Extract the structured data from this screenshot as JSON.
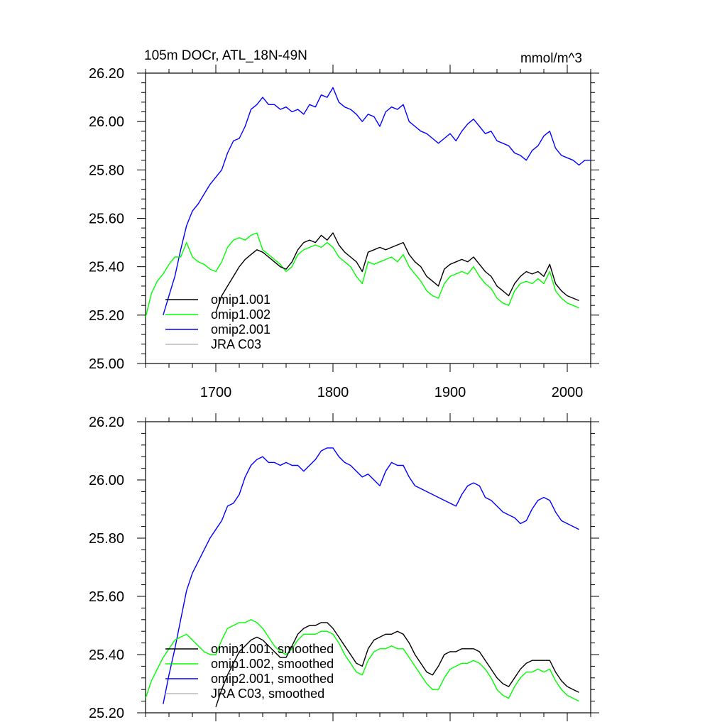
{
  "chart_data": [
    {
      "type": "line",
      "panel": "top",
      "title": "105m DOCr, ATL_18N-49N",
      "units": "mmol/m^3",
      "xlabel": "",
      "ylabel": "",
      "xlim": [
        1640,
        2020
      ],
      "ylim": [
        25.0,
        26.2
      ],
      "xticks": [
        1700,
        1800,
        1900,
        2000
      ],
      "xtick_labels": [
        "1700",
        "1800",
        "1900",
        "2000"
      ],
      "yticks": [
        25.0,
        25.2,
        25.4,
        25.6,
        25.8,
        26.0,
        26.2
      ],
      "ytick_labels": [
        "25.00",
        "25.20",
        "25.40",
        "25.60",
        "25.80",
        "26.00",
        "26.20"
      ],
      "legend_location": "bottom-left",
      "series": [
        {
          "name": "omip1.001",
          "color": "#000000",
          "x": [
            1700,
            1705,
            1710,
            1715,
            1720,
            1725,
            1730,
            1735,
            1740,
            1745,
            1750,
            1755,
            1760,
            1765,
            1770,
            1775,
            1780,
            1785,
            1790,
            1795,
            1800,
            1805,
            1810,
            1815,
            1820,
            1825,
            1830,
            1835,
            1840,
            1845,
            1850,
            1855,
            1860,
            1865,
            1870,
            1875,
            1880,
            1885,
            1890,
            1895,
            1900,
            1905,
            1910,
            1915,
            1920,
            1925,
            1930,
            1935,
            1940,
            1945,
            1950,
            1955,
            1960,
            1965,
            1970,
            1975,
            1980,
            1985,
            1990,
            1995,
            2000,
            2005,
            2010
          ],
          "y": [
            25.21,
            25.28,
            25.32,
            25.36,
            25.4,
            25.43,
            25.45,
            25.47,
            25.46,
            25.44,
            25.42,
            25.4,
            25.39,
            25.42,
            25.47,
            25.5,
            25.51,
            25.5,
            25.53,
            25.51,
            25.54,
            25.49,
            25.46,
            25.44,
            25.42,
            25.38,
            25.46,
            25.47,
            25.48,
            25.47,
            25.48,
            25.49,
            25.5,
            25.45,
            25.42,
            25.4,
            25.36,
            25.34,
            25.32,
            25.39,
            25.41,
            25.42,
            25.43,
            25.42,
            25.44,
            25.41,
            25.38,
            25.36,
            25.32,
            25.3,
            25.28,
            25.33,
            25.36,
            25.38,
            25.37,
            25.38,
            25.36,
            25.41,
            25.33,
            25.3,
            25.28,
            25.27,
            25.26
          ]
        },
        {
          "name": "omip1.002",
          "color": "#00ff00",
          "x": [
            1640,
            1645,
            1650,
            1655,
            1660,
            1665,
            1670,
            1675,
            1680,
            1685,
            1690,
            1695,
            1700,
            1705,
            1710,
            1715,
            1720,
            1725,
            1730,
            1735,
            1740,
            1745,
            1750,
            1755,
            1760,
            1765,
            1770,
            1775,
            1780,
            1785,
            1790,
            1795,
            1800,
            1805,
            1810,
            1815,
            1820,
            1825,
            1830,
            1835,
            1840,
            1845,
            1850,
            1855,
            1860,
            1865,
            1870,
            1875,
            1880,
            1885,
            1890,
            1895,
            1900,
            1905,
            1910,
            1915,
            1920,
            1925,
            1930,
            1935,
            1940,
            1945,
            1950,
            1955,
            1960,
            1965,
            1970,
            1975,
            1980,
            1985,
            1990,
            1995,
            2000,
            2005,
            2010
          ],
          "y": [
            25.19,
            25.29,
            25.34,
            25.37,
            25.41,
            25.44,
            25.44,
            25.5,
            25.44,
            25.42,
            25.41,
            25.39,
            25.38,
            25.42,
            25.48,
            25.51,
            25.52,
            25.51,
            25.53,
            25.54,
            25.47,
            25.45,
            25.43,
            25.41,
            25.38,
            25.4,
            25.45,
            25.47,
            25.48,
            25.49,
            25.48,
            25.5,
            25.48,
            25.44,
            25.42,
            25.4,
            25.36,
            25.33,
            25.42,
            25.41,
            25.42,
            25.43,
            25.44,
            25.42,
            25.45,
            25.4,
            25.37,
            25.34,
            25.3,
            25.28,
            25.27,
            25.33,
            25.36,
            25.37,
            25.38,
            25.37,
            25.4,
            25.36,
            25.33,
            25.31,
            25.27,
            25.25,
            25.24,
            25.3,
            25.33,
            25.34,
            25.33,
            25.35,
            25.33,
            25.38,
            25.3,
            25.27,
            25.25,
            25.24,
            25.23
          ]
        },
        {
          "name": "omip2.001",
          "color": "#0000ff",
          "x": [
            1655,
            1660,
            1665,
            1670,
            1675,
            1680,
            1685,
            1690,
            1695,
            1700,
            1705,
            1710,
            1715,
            1720,
            1725,
            1730,
            1735,
            1740,
            1745,
            1750,
            1755,
            1760,
            1765,
            1770,
            1775,
            1780,
            1785,
            1790,
            1795,
            1800,
            1805,
            1810,
            1815,
            1820,
            1825,
            1830,
            1835,
            1840,
            1845,
            1850,
            1855,
            1860,
            1865,
            1870,
            1875,
            1880,
            1885,
            1890,
            1895,
            1900,
            1905,
            1910,
            1915,
            1920,
            1925,
            1930,
            1935,
            1940,
            1945,
            1950,
            1955,
            1960,
            1965,
            1970,
            1975,
            1980,
            1985,
            1990,
            1995,
            2000,
            2005,
            2010,
            2015,
            2020
          ],
          "y": [
            25.2,
            25.28,
            25.36,
            25.47,
            25.57,
            25.63,
            25.66,
            25.7,
            25.74,
            25.77,
            25.8,
            25.87,
            25.92,
            25.93,
            25.98,
            26.05,
            26.07,
            26.1,
            26.07,
            26.07,
            26.05,
            26.06,
            26.04,
            26.05,
            26.03,
            26.07,
            26.06,
            26.11,
            26.1,
            26.14,
            26.08,
            26.06,
            26.05,
            26.03,
            26.0,
            26.03,
            26.02,
            25.98,
            26.04,
            26.06,
            26.05,
            26.07,
            26.0,
            25.98,
            25.96,
            25.95,
            25.93,
            25.91,
            25.93,
            25.95,
            25.92,
            25.96,
            25.99,
            26.01,
            25.98,
            25.95,
            25.96,
            25.92,
            25.91,
            25.9,
            25.87,
            25.86,
            25.84,
            25.88,
            25.9,
            25.94,
            25.96,
            25.89,
            25.86,
            25.85,
            25.84,
            25.82,
            25.84,
            25.84
          ]
        },
        {
          "name": "JRA C03",
          "color": "#bbbbbb",
          "x": [],
          "y": []
        }
      ]
    },
    {
      "type": "line",
      "panel": "bottom",
      "title": "",
      "xlabel": "",
      "ylabel": "",
      "xlim": [
        1640,
        2020
      ],
      "ylim": [
        25.2,
        26.2
      ],
      "xticks": [
        1700,
        1800,
        1900,
        2000
      ],
      "yticks": [
        25.2,
        25.4,
        25.6,
        25.8,
        26.0,
        26.2
      ],
      "ytick_labels": [
        "25.20",
        "25.40",
        "25.60",
        "25.80",
        "26.00",
        "26.20"
      ],
      "legend_location": "bottom-left",
      "series": [
        {
          "name": "omip1.001, smoothed",
          "color": "#000000",
          "x": [
            1700,
            1705,
            1710,
            1715,
            1720,
            1725,
            1730,
            1735,
            1740,
            1745,
            1750,
            1755,
            1760,
            1765,
            1770,
            1775,
            1780,
            1785,
            1790,
            1795,
            1800,
            1805,
            1810,
            1815,
            1820,
            1825,
            1830,
            1835,
            1840,
            1845,
            1850,
            1855,
            1860,
            1865,
            1870,
            1875,
            1880,
            1885,
            1890,
            1895,
            1900,
            1905,
            1910,
            1915,
            1920,
            1925,
            1930,
            1935,
            1940,
            1945,
            1950,
            1955,
            1960,
            1965,
            1970,
            1975,
            1980,
            1985,
            1990,
            1995,
            2000,
            2005,
            2010
          ],
          "y": [
            25.22,
            25.28,
            25.33,
            25.37,
            25.41,
            25.43,
            25.45,
            25.46,
            25.45,
            25.43,
            25.41,
            25.39,
            25.39,
            25.43,
            25.47,
            25.49,
            25.5,
            25.5,
            25.51,
            25.51,
            25.49,
            25.46,
            25.43,
            25.4,
            25.37,
            25.36,
            25.42,
            25.45,
            25.46,
            25.47,
            25.47,
            25.48,
            25.47,
            25.44,
            25.4,
            25.37,
            25.34,
            25.33,
            25.36,
            25.4,
            25.41,
            25.41,
            25.42,
            25.42,
            25.42,
            25.41,
            25.38,
            25.35,
            25.32,
            25.3,
            25.29,
            25.32,
            25.35,
            25.37,
            25.38,
            25.38,
            25.38,
            25.38,
            25.34,
            25.31,
            25.29,
            25.28,
            25.27
          ]
        },
        {
          "name": "omip1.002, smoothed",
          "color": "#00ff00",
          "x": [
            1640,
            1645,
            1650,
            1655,
            1660,
            1665,
            1670,
            1675,
            1680,
            1685,
            1690,
            1695,
            1700,
            1705,
            1710,
            1715,
            1720,
            1725,
            1730,
            1735,
            1740,
            1745,
            1750,
            1755,
            1760,
            1765,
            1770,
            1775,
            1780,
            1785,
            1790,
            1795,
            1800,
            1805,
            1810,
            1815,
            1820,
            1825,
            1830,
            1835,
            1840,
            1845,
            1850,
            1855,
            1860,
            1865,
            1870,
            1875,
            1880,
            1885,
            1890,
            1895,
            1900,
            1905,
            1910,
            1915,
            1920,
            1925,
            1930,
            1935,
            1940,
            1945,
            1950,
            1955,
            1960,
            1965,
            1970,
            1975,
            1980,
            1985,
            1990,
            1995,
            2000,
            2005,
            2010
          ],
          "y": [
            25.25,
            25.31,
            25.35,
            25.39,
            25.42,
            25.45,
            25.46,
            25.47,
            25.45,
            25.43,
            25.41,
            25.4,
            25.4,
            25.45,
            25.49,
            25.5,
            25.51,
            25.51,
            25.52,
            25.51,
            25.49,
            25.46,
            25.43,
            25.41,
            25.4,
            25.42,
            25.45,
            25.47,
            25.47,
            25.47,
            25.48,
            25.48,
            25.47,
            25.44,
            25.4,
            25.37,
            25.34,
            25.33,
            25.38,
            25.41,
            25.42,
            25.42,
            25.43,
            25.42,
            25.42,
            25.39,
            25.36,
            25.33,
            25.3,
            25.28,
            25.28,
            25.32,
            25.35,
            25.36,
            25.37,
            25.37,
            25.38,
            25.37,
            25.35,
            25.32,
            25.28,
            25.26,
            25.25,
            25.29,
            25.32,
            25.34,
            25.34,
            25.35,
            25.34,
            25.35,
            25.31,
            25.28,
            25.26,
            25.25,
            25.24
          ]
        },
        {
          "name": "omip2.001, smoothed",
          "color": "#0000ff",
          "x": [
            1655,
            1660,
            1665,
            1670,
            1675,
            1680,
            1685,
            1690,
            1695,
            1700,
            1705,
            1710,
            1715,
            1720,
            1725,
            1730,
            1735,
            1740,
            1745,
            1750,
            1755,
            1760,
            1765,
            1770,
            1775,
            1780,
            1785,
            1790,
            1795,
            1800,
            1805,
            1810,
            1815,
            1820,
            1825,
            1830,
            1835,
            1840,
            1845,
            1850,
            1855,
            1860,
            1865,
            1870,
            1875,
            1880,
            1885,
            1890,
            1895,
            1900,
            1905,
            1910,
            1915,
            1920,
            1925,
            1930,
            1935,
            1940,
            1945,
            1950,
            1955,
            1960,
            1965,
            1970,
            1975,
            1980,
            1985,
            1990,
            1995,
            2000,
            2005,
            2010
          ],
          "y": [
            25.23,
            25.33,
            25.42,
            25.52,
            25.62,
            25.68,
            25.72,
            25.76,
            25.8,
            25.83,
            25.86,
            25.91,
            25.92,
            25.95,
            26.01,
            26.05,
            26.07,
            26.08,
            26.06,
            26.06,
            26.05,
            26.06,
            26.05,
            26.05,
            26.03,
            26.05,
            26.07,
            26.1,
            26.11,
            26.11,
            26.08,
            26.06,
            26.05,
            26.03,
            26.01,
            26.02,
            26.0,
            25.98,
            26.03,
            26.06,
            26.05,
            26.05,
            26.01,
            25.98,
            25.97,
            25.96,
            25.95,
            25.94,
            25.93,
            25.92,
            25.91,
            25.95,
            25.98,
            25.99,
            25.98,
            25.94,
            25.93,
            25.91,
            25.89,
            25.88,
            25.87,
            25.85,
            25.86,
            25.9,
            25.93,
            25.94,
            25.93,
            25.89,
            25.86,
            25.85,
            25.84,
            25.83
          ]
        },
        {
          "name": "JRA C03, smoothed",
          "color": "#bbbbbb",
          "x": [],
          "y": []
        }
      ]
    }
  ]
}
